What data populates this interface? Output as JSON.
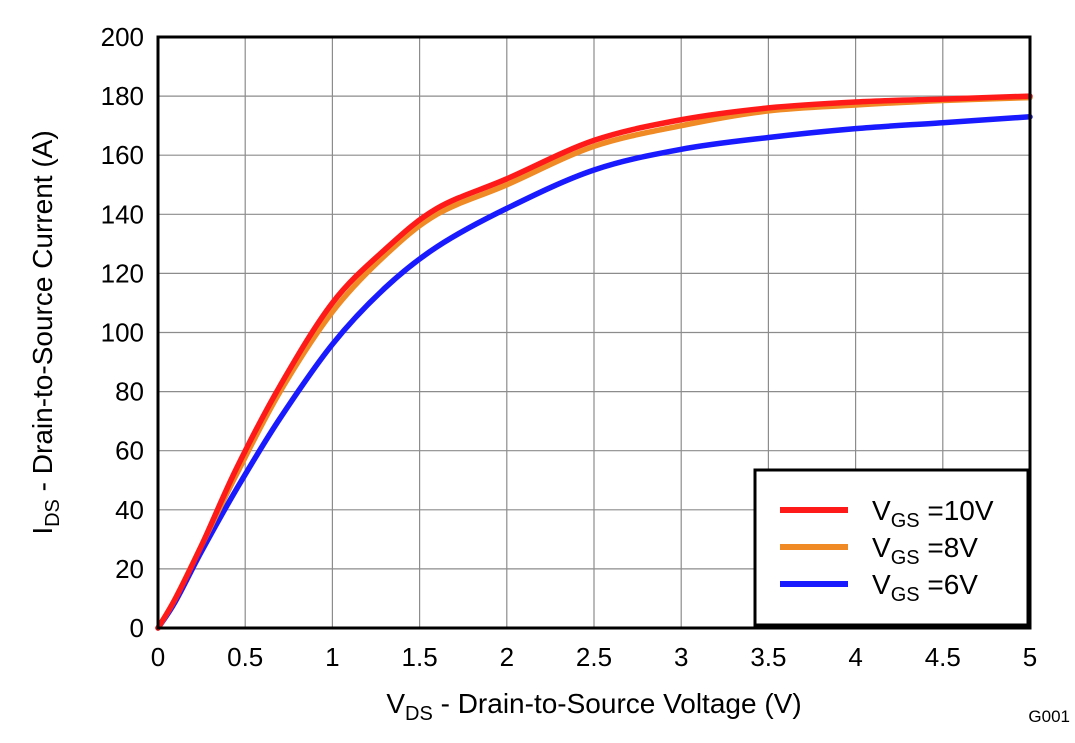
{
  "figure_id": "G001",
  "chart_data": {
    "type": "line",
    "xlabel": {
      "main": "V",
      "sub": "DS",
      "rest": " - Drain-to-Source Voltage (V)"
    },
    "ylabel": {
      "main": "I",
      "sub": "DS",
      "rest": " - Drain-to-Source Current (A)"
    },
    "xlim": [
      0,
      5
    ],
    "ylim": [
      0,
      200
    ],
    "xticks": [
      0,
      0.5,
      1,
      1.5,
      2,
      2.5,
      3,
      3.5,
      4,
      4.5,
      5
    ],
    "xtick_labels": [
      "0",
      "0.5",
      "1",
      "1.5",
      "2",
      "2.5",
      "3",
      "3.5",
      "4",
      "4.5",
      "5"
    ],
    "yticks": [
      0,
      20,
      40,
      60,
      80,
      100,
      120,
      140,
      160,
      180,
      200
    ],
    "ytick_labels": [
      "0",
      "20",
      "40",
      "60",
      "80",
      "100",
      "120",
      "140",
      "160",
      "180",
      "200"
    ],
    "grid": true,
    "legend_position": "bottom-right",
    "series": [
      {
        "name": {
          "main": "V",
          "sub": "GS",
          "rest": " =10V"
        },
        "color": "#ff1a1a",
        "x": [
          0,
          0.1,
          0.25,
          0.45,
          0.7,
          1.0,
          1.3,
          1.6,
          2.0,
          2.5,
          3.0,
          3.5,
          4.0,
          4.5,
          5.0
        ],
        "y": [
          0,
          10,
          28,
          54,
          82,
          110,
          128,
          142,
          152,
          165,
          172,
          176,
          178,
          179,
          180
        ]
      },
      {
        "name": {
          "main": "V",
          "sub": "GS",
          "rest": " =8V"
        },
        "color": "#f08a24",
        "x": [
          0,
          0.1,
          0.25,
          0.45,
          0.7,
          1.0,
          1.3,
          1.6,
          2.0,
          2.5,
          3.0,
          3.5,
          4.0,
          4.5,
          5.0
        ],
        "y": [
          0,
          10,
          28,
          52,
          80,
          107,
          126,
          140,
          150,
          163,
          170,
          175,
          177,
          178.5,
          179.5
        ]
      },
      {
        "name": {
          "main": "V",
          "sub": "GS",
          "rest": " =6V"
        },
        "color": "#1a1aff",
        "x": [
          0,
          0.1,
          0.25,
          0.45,
          0.7,
          1.0,
          1.3,
          1.6,
          2.0,
          2.5,
          3.0,
          3.5,
          4.0,
          4.5,
          5.0
        ],
        "y": [
          0,
          9,
          26,
          47,
          71,
          96,
          115,
          129,
          142,
          155,
          162,
          166,
          169,
          171,
          173
        ]
      }
    ]
  }
}
